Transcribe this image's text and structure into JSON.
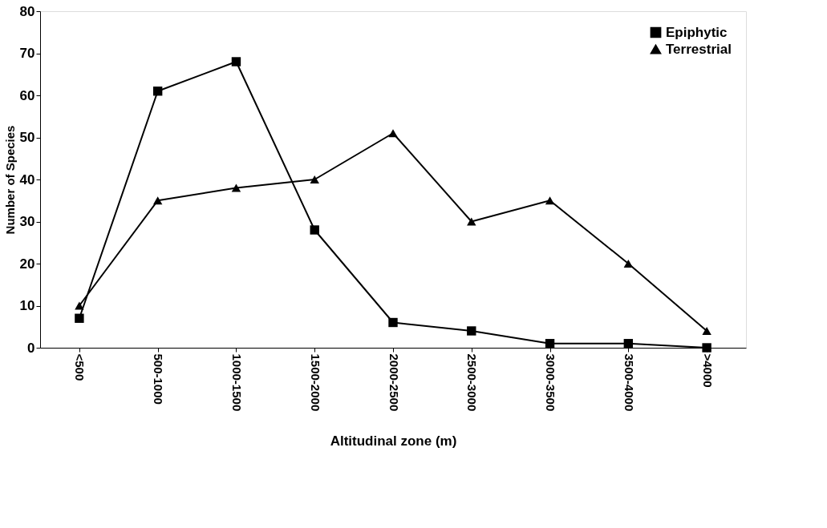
{
  "chart_data": {
    "type": "line",
    "xlabel": "Altitudinal zone (m)",
    "ylabel": "Number of Species",
    "categories": [
      "<500",
      "500-1000",
      "1000-1500",
      "1500-2000",
      "2000-2500",
      "2500-3000",
      "3000-3500",
      "3500-4000",
      ">4000"
    ],
    "series": [
      {
        "name": "Epiphytic",
        "color": "#000000",
        "marker": "square",
        "values": [
          7,
          61,
          68,
          28,
          6,
          4,
          1,
          1,
          0
        ]
      },
      {
        "name": "Terrestrial",
        "color": "#000000",
        "marker": "triangle",
        "values": [
          10,
          35,
          38,
          40,
          51,
          30,
          35,
          20,
          4
        ]
      }
    ],
    "ylim": [
      0,
      80
    ],
    "yticks": [
      0,
      10,
      20,
      30,
      40,
      50,
      60,
      70,
      80
    ],
    "grid": false,
    "legend": "top right"
  }
}
